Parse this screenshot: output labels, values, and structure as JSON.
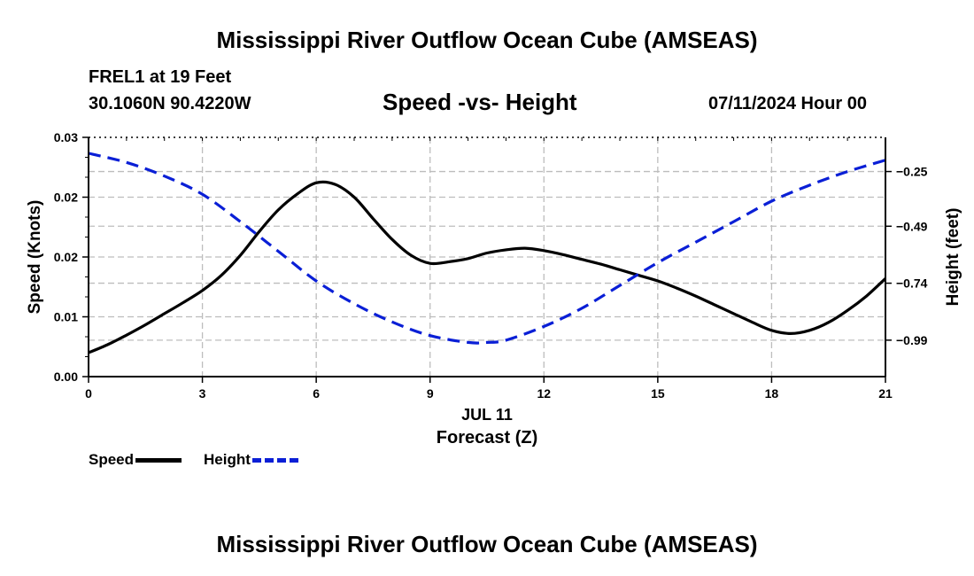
{
  "header": {
    "title": "Mississippi River Outflow Ocean Cube (AMSEAS)",
    "station": "FREL1 at 19 Feet",
    "coords": "30.1060N  90.4220W",
    "subtitle": "Speed -vs- Height",
    "datetime": "07/11/2024 Hour 00"
  },
  "footer": {
    "title": "Mississippi River Outflow Ocean Cube (AMSEAS)"
  },
  "legend": {
    "speed_label": "Speed",
    "height_label": "Height"
  },
  "colors": {
    "speed": "#000000",
    "height": "#0a1fd6",
    "grid": "#bdbdbd"
  },
  "chart_data": {
    "type": "line",
    "title": "Speed -vs- Height",
    "xlabel": "Forecast (Z)",
    "date_label": "JUL 11",
    "xlim": [
      0,
      21
    ],
    "x_ticks": [
      "0",
      "3",
      "6",
      "9",
      "12",
      "15",
      "18",
      "21"
    ],
    "y_left": {
      "label": "Speed (Knots)",
      "ylim": [
        0,
        0.03
      ],
      "ticks": [
        0,
        0.0075,
        0.015,
        0.0225,
        0.03
      ],
      "tick_labels": [
        "0.00",
        "0.01",
        "0.02",
        "0.02",
        "0.03"
      ]
    },
    "y_right": {
      "label": "Height (feet)",
      "ylim": [
        -1.15,
        -0.1
      ],
      "ticks": [
        -0.99,
        -0.74,
        -0.49,
        -0.25
      ],
      "tick_labels": [
        "−0.99",
        "−0.74",
        "−0.49",
        "−0.25"
      ]
    },
    "grid": true,
    "series": [
      {
        "name": "Speed",
        "axis": "left",
        "style": "solid",
        "x": [
          0,
          0.5,
          1,
          1.5,
          2,
          2.5,
          3,
          3.5,
          4,
          4.5,
          5,
          5.5,
          6,
          6.5,
          7,
          7.5,
          8,
          8.5,
          9,
          9.5,
          10,
          10.5,
          11,
          11.5,
          12,
          12.5,
          13,
          13.5,
          14,
          14.5,
          15,
          15.5,
          16,
          16.5,
          17,
          17.5,
          18,
          18.5,
          19,
          19.5,
          20,
          20.5,
          21
        ],
        "values": [
          0.003,
          0.004,
          0.0052,
          0.0065,
          0.0079,
          0.0093,
          0.0108,
          0.0127,
          0.0152,
          0.0182,
          0.0209,
          0.0229,
          0.0243,
          0.0241,
          0.0225,
          0.0198,
          0.0172,
          0.0152,
          0.0142,
          0.0144,
          0.0148,
          0.0155,
          0.0159,
          0.0161,
          0.0158,
          0.0153,
          0.0147,
          0.0141,
          0.0134,
          0.0127,
          0.012,
          0.0111,
          0.0101,
          0.009,
          0.0079,
          0.0068,
          0.0058,
          0.0054,
          0.0058,
          0.0068,
          0.0083,
          0.0101,
          0.0123
        ]
      },
      {
        "name": "Height",
        "axis": "right",
        "style": "dashed",
        "x": [
          0,
          1,
          2,
          3,
          4,
          5,
          6,
          7,
          8,
          9,
          10,
          10.5,
          11,
          12,
          13,
          14,
          15,
          16,
          17,
          18,
          19,
          20,
          21
        ],
        "values": [
          -0.17,
          -0.21,
          -0.27,
          -0.35,
          -0.47,
          -0.6,
          -0.73,
          -0.83,
          -0.91,
          -0.97,
          -1.0,
          -1.0,
          -0.99,
          -0.93,
          -0.85,
          -0.75,
          -0.65,
          -0.56,
          -0.47,
          -0.38,
          -0.31,
          -0.25,
          -0.2
        ]
      }
    ]
  }
}
